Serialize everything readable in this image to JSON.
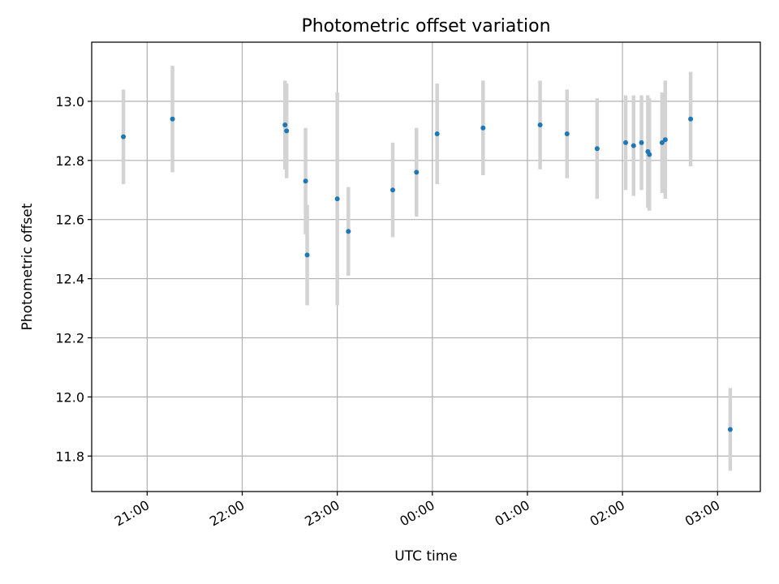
{
  "chart_data": {
    "type": "scatter",
    "title": "Photometric offset variation",
    "xlabel": "UTC time",
    "ylabel": "Photometric offset",
    "grid": true,
    "x_axis_type": "time",
    "xlim": [
      "20:25",
      "03:27"
    ],
    "ylim": [
      11.68,
      13.2
    ],
    "x_ticks": [
      "21:00",
      "22:00",
      "23:00",
      "00:00",
      "01:00",
      "02:00",
      "03:00"
    ],
    "y_ticks": [
      "11.8",
      "12.0",
      "12.2",
      "12.4",
      "12.6",
      "12.8",
      "13.0"
    ],
    "colors": {
      "point": "#1f77b4",
      "errorbar": "#d3d3d3",
      "grid": "#b0b0b0"
    },
    "series": [
      {
        "points": [
          {
            "x": "20:45",
            "y": 12.88,
            "yerr": 0.16
          },
          {
            "x": "21:16",
            "y": 12.94,
            "yerr": 0.18
          },
          {
            "x": "22:27",
            "y": 12.92,
            "yerr": 0.15
          },
          {
            "x": "22:28",
            "y": 12.9,
            "yerr": 0.16
          },
          {
            "x": "22:40",
            "y": 12.73,
            "yerr": 0.18
          },
          {
            "x": "22:41",
            "y": 12.48,
            "yerr": 0.17
          },
          {
            "x": "23:00",
            "y": 12.67,
            "yerr": 0.36
          },
          {
            "x": "23:07",
            "y": 12.56,
            "yerr": 0.15
          },
          {
            "x": "23:35",
            "y": 12.7,
            "yerr": 0.16
          },
          {
            "x": "23:50",
            "y": 12.76,
            "yerr": 0.15
          },
          {
            "x": "00:03",
            "y": 12.89,
            "yerr": 0.17
          },
          {
            "x": "00:32",
            "y": 12.91,
            "yerr": 0.16
          },
          {
            "x": "01:08",
            "y": 12.92,
            "yerr": 0.15
          },
          {
            "x": "01:25",
            "y": 12.89,
            "yerr": 0.15
          },
          {
            "x": "01:44",
            "y": 12.84,
            "yerr": 0.17
          },
          {
            "x": "02:02",
            "y": 12.86,
            "yerr": 0.16
          },
          {
            "x": "02:07",
            "y": 12.85,
            "yerr": 0.17
          },
          {
            "x": "02:12",
            "y": 12.86,
            "yerr": 0.16
          },
          {
            "x": "02:16",
            "y": 12.83,
            "yerr": 0.19
          },
          {
            "x": "02:17",
            "y": 12.82,
            "yerr": 0.19
          },
          {
            "x": "02:25",
            "y": 12.86,
            "yerr": 0.17
          },
          {
            "x": "02:27",
            "y": 12.87,
            "yerr": 0.2
          },
          {
            "x": "02:43",
            "y": 12.94,
            "yerr": 0.16
          },
          {
            "x": "03:08",
            "y": 11.89,
            "yerr": 0.14
          }
        ]
      }
    ]
  }
}
